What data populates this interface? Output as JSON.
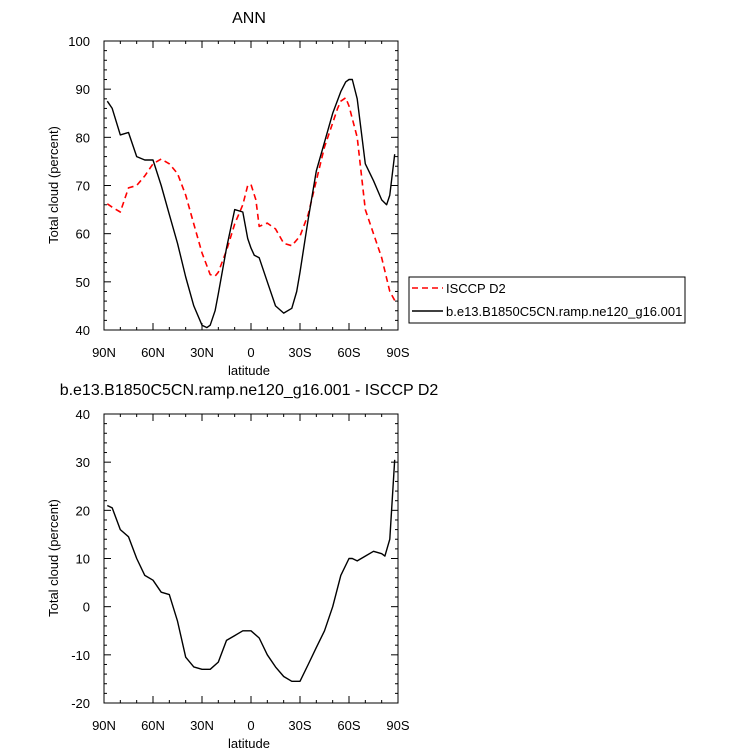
{
  "chart_data": [
    {
      "type": "line",
      "title": "ANN",
      "xlabel": "latitude",
      "ylabel": "Total cloud (percent)",
      "x_tick_labels": [
        "90N",
        "60N",
        "30N",
        "0",
        "30S",
        "60S",
        "90S"
      ],
      "x_ticks": [
        90,
        60,
        30,
        0,
        -30,
        -60,
        -90
      ],
      "xlim": [
        90,
        -90
      ],
      "y_ticks": [
        40,
        50,
        60,
        70,
        80,
        90,
        100
      ],
      "ylim": [
        40,
        100
      ],
      "legend_position": "right",
      "series": [
        {
          "name": "ISCCP D2",
          "color": "#ff0000",
          "dash": "dashed",
          "x": [
            88,
            85,
            80,
            75,
            70,
            65,
            60,
            55,
            50,
            45,
            40,
            35,
            30,
            25,
            22,
            20,
            15,
            10,
            5,
            2,
            0,
            -3,
            -5,
            -10,
            -15,
            -20,
            -25,
            -30,
            -35,
            -40,
            -45,
            -50,
            -53,
            -55,
            -58,
            -60,
            -65,
            -70,
            -75,
            -80,
            -85,
            -89
          ],
          "values": [
            66.2,
            65.5,
            64.5,
            69.5,
            70.0,
            72.0,
            74.5,
            75.5,
            74.5,
            72.5,
            68.0,
            62.0,
            56.0,
            51.5,
            51.2,
            52.0,
            56.5,
            62.0,
            66.0,
            70.0,
            70.2,
            67.0,
            61.5,
            62.2,
            61.0,
            58.0,
            57.5,
            59.5,
            64.0,
            71.0,
            78.0,
            83.0,
            86.0,
            87.5,
            88.2,
            86.5,
            80.0,
            65.0,
            60.0,
            55.0,
            48.0,
            45.5
          ]
        },
        {
          "name": "b.e13.B1850C5CN.ramp.ne120_g16.001",
          "color": "#000000",
          "dash": "solid",
          "x": [
            88,
            85,
            80,
            75,
            70,
            65,
            60,
            55,
            50,
            45,
            40,
            35,
            30,
            27,
            25,
            22,
            20,
            15,
            10,
            5,
            2,
            0,
            -2,
            -5,
            -10,
            -15,
            -20,
            -25,
            -28,
            -30,
            -35,
            -40,
            -45,
            -50,
            -55,
            -58,
            -60,
            -62,
            -65,
            -70,
            -75,
            -80,
            -83,
            -85,
            -88
          ],
          "values": [
            87.5,
            86.0,
            80.5,
            81.0,
            76.0,
            75.3,
            75.3,
            70.0,
            64.0,
            58.0,
            51.0,
            45.0,
            41.0,
            40.5,
            41.0,
            44.0,
            47.5,
            57.0,
            65.0,
            64.5,
            59.0,
            57.0,
            55.5,
            55.0,
            50.0,
            45.0,
            43.5,
            44.5,
            48.0,
            52.0,
            63.0,
            73.0,
            79.0,
            85.0,
            89.5,
            91.5,
            92.0,
            92.0,
            88.0,
            74.5,
            71.0,
            67.0,
            66.0,
            68.0,
            76.5
          ]
        }
      ]
    },
    {
      "type": "line",
      "title": "b.e13.B1850C5CN.ramp.ne120_g16.001 - ISCCP D2",
      "xlabel": "latitude",
      "ylabel": "Total cloud (percent)",
      "x_tick_labels": [
        "90N",
        "60N",
        "30N",
        "0",
        "30S",
        "60S",
        "90S"
      ],
      "x_ticks": [
        90,
        60,
        30,
        0,
        -30,
        -60,
        -90
      ],
      "xlim": [
        90,
        -90
      ],
      "y_ticks": [
        -20,
        -10,
        0,
        10,
        20,
        30,
        40
      ],
      "ylim": [
        -20,
        40
      ],
      "series": [
        {
          "color": "#000000",
          "dash": "solid",
          "x": [
            88,
            85,
            80,
            75,
            70,
            65,
            60,
            55,
            50,
            45,
            40,
            35,
            30,
            25,
            20,
            15,
            10,
            5,
            0,
            -5,
            -10,
            -15,
            -20,
            -25,
            -30,
            -35,
            -40,
            -45,
            -50,
            -55,
            -60,
            -62,
            -65,
            -70,
            -75,
            -80,
            -82,
            -85,
            -88
          ],
          "values": [
            21.0,
            20.5,
            16.0,
            14.5,
            10.0,
            6.5,
            5.5,
            3.0,
            2.5,
            -3.0,
            -10.5,
            -12.5,
            -13.0,
            -13.0,
            -11.5,
            -7.0,
            -6.0,
            -5.0,
            -5.0,
            -6.5,
            -10.0,
            -12.5,
            -14.5,
            -15.5,
            -15.5,
            -12.0,
            -8.5,
            -5.0,
            0.0,
            6.5,
            10.0,
            10.0,
            9.5,
            10.5,
            11.5,
            11.0,
            10.5,
            14.0,
            30.5
          ]
        }
      ]
    }
  ]
}
